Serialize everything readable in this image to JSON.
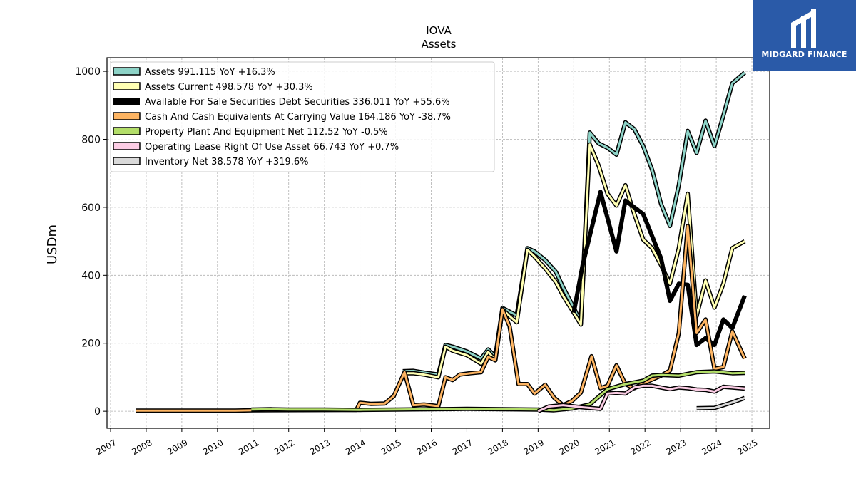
{
  "brand": {
    "name": "MIDGARD FINANCE",
    "color": "#2a5aa8"
  },
  "chart_data": {
    "type": "line",
    "title": "IOVA",
    "subtitle": "Assets",
    "ylabel": "USDm",
    "xlabel": "",
    "xlim": [
      2006.9,
      2025.5
    ],
    "ylim": [
      -50,
      1040
    ],
    "yticks": [
      0,
      200,
      400,
      600,
      800,
      1000
    ],
    "xticks": [
      "2007",
      "2008",
      "2009",
      "2010",
      "2011",
      "2012",
      "2013",
      "2014",
      "2015",
      "2016",
      "2017",
      "2018",
      "2019",
      "2020",
      "2021",
      "2022",
      "2023",
      "2024",
      "2025"
    ],
    "grid": true,
    "legend_position": "top-left",
    "series": [
      {
        "name": "Assets",
        "legend": "Assets  991.115 YoY +16.3%",
        "color": "#8dd3c7",
        "width": 3,
        "points": [
          [
            2015.2,
            118
          ],
          [
            2015.5,
            119
          ],
          [
            2015.8,
            114
          ],
          [
            2016.2,
            108
          ],
          [
            2016.4,
            195
          ],
          [
            2016.6,
            190
          ],
          [
            2017.0,
            176
          ],
          [
            2017.4,
            155
          ],
          [
            2017.6,
            182
          ],
          [
            2017.8,
            161
          ],
          [
            2018.0,
            304
          ],
          [
            2018.2,
            293
          ],
          [
            2018.4,
            282
          ],
          [
            2018.7,
            480
          ],
          [
            2018.9,
            470
          ],
          [
            2019.2,
            445
          ],
          [
            2019.5,
            410
          ],
          [
            2019.7,
            365
          ],
          [
            2020.0,
            305
          ],
          [
            2020.2,
            260
          ],
          [
            2020.45,
            820
          ],
          [
            2020.7,
            788
          ],
          [
            2020.95,
            775
          ],
          [
            2021.2,
            755
          ],
          [
            2021.45,
            850
          ],
          [
            2021.7,
            830
          ],
          [
            2021.95,
            780
          ],
          [
            2022.2,
            710
          ],
          [
            2022.45,
            610
          ],
          [
            2022.7,
            545
          ],
          [
            2022.95,
            665
          ],
          [
            2023.2,
            825
          ],
          [
            2023.45,
            760
          ],
          [
            2023.7,
            855
          ],
          [
            2023.95,
            780
          ],
          [
            2024.2,
            870
          ],
          [
            2024.45,
            965
          ],
          [
            2024.8,
            996
          ]
        ]
      },
      {
        "name": "Assets Current",
        "legend": "Assets Current  498.578 YoY +30.3%",
        "color": "#ffffb3",
        "width": 3,
        "points": [
          [
            2015.2,
            112
          ],
          [
            2015.5,
            112
          ],
          [
            2015.8,
            108
          ],
          [
            2016.2,
            100
          ],
          [
            2016.4,
            190
          ],
          [
            2016.6,
            178
          ],
          [
            2017.0,
            165
          ],
          [
            2017.4,
            140
          ],
          [
            2017.6,
            175
          ],
          [
            2017.8,
            150
          ],
          [
            2018.0,
            300
          ],
          [
            2018.2,
            280
          ],
          [
            2018.4,
            262
          ],
          [
            2018.7,
            475
          ],
          [
            2018.9,
            455
          ],
          [
            2019.2,
            420
          ],
          [
            2019.5,
            380
          ],
          [
            2019.7,
            340
          ],
          [
            2020.0,
            290
          ],
          [
            2020.2,
            255
          ],
          [
            2020.45,
            785
          ],
          [
            2020.7,
            722
          ],
          [
            2020.95,
            640
          ],
          [
            2021.2,
            605
          ],
          [
            2021.45,
            665
          ],
          [
            2021.7,
            580
          ],
          [
            2021.95,
            505
          ],
          [
            2022.2,
            480
          ],
          [
            2022.45,
            430
          ],
          [
            2022.7,
            375
          ],
          [
            2022.95,
            480
          ],
          [
            2023.2,
            640
          ],
          [
            2023.45,
            280
          ],
          [
            2023.7,
            385
          ],
          [
            2023.95,
            305
          ],
          [
            2024.2,
            375
          ],
          [
            2024.45,
            480
          ],
          [
            2024.8,
            500
          ]
        ]
      },
      {
        "name": "Available For Sale Securities Debt Securities",
        "legend": "Available For Sale Securities Debt Securities  336.011 YoY +55.6%",
        "color": "#000000",
        "width": 6,
        "points": [
          [
            2020.0,
            290
          ],
          [
            2020.25,
            430
          ],
          [
            2020.75,
            645
          ],
          [
            2021.2,
            470
          ],
          [
            2021.45,
            620
          ],
          [
            2021.95,
            580
          ],
          [
            2022.45,
            450
          ],
          [
            2022.7,
            325
          ],
          [
            2022.95,
            375
          ],
          [
            2023.2,
            372
          ],
          [
            2023.45,
            195
          ],
          [
            2023.7,
            215
          ],
          [
            2023.95,
            195
          ],
          [
            2024.2,
            270
          ],
          [
            2024.45,
            245
          ],
          [
            2024.8,
            340
          ]
        ]
      },
      {
        "name": "Cash And Cash Equivalents At Carrying Value",
        "legend": "Cash And Cash Equivalents At Carrying Value  164.186 YoY -38.7%",
        "color": "#fdb462",
        "width": 3,
        "points": [
          [
            2007.7,
            2
          ],
          [
            2010.0,
            2
          ],
          [
            2010.5,
            2
          ],
          [
            2011.0,
            3
          ],
          [
            2013.9,
            4
          ],
          [
            2014.0,
            25
          ],
          [
            2014.3,
            22
          ],
          [
            2014.7,
            23
          ],
          [
            2014.95,
            45
          ],
          [
            2015.25,
            115
          ],
          [
            2015.5,
            18
          ],
          [
            2015.8,
            20
          ],
          [
            2016.2,
            15
          ],
          [
            2016.4,
            100
          ],
          [
            2016.6,
            92
          ],
          [
            2016.8,
            108
          ],
          [
            2017.1,
            112
          ],
          [
            2017.4,
            115
          ],
          [
            2017.6,
            160
          ],
          [
            2017.8,
            150
          ],
          [
            2018.0,
            300
          ],
          [
            2018.2,
            250
          ],
          [
            2018.45,
            80
          ],
          [
            2018.7,
            80
          ],
          [
            2018.9,
            52
          ],
          [
            2019.2,
            78
          ],
          [
            2019.45,
            40
          ],
          [
            2019.7,
            18
          ],
          [
            2019.95,
            30
          ],
          [
            2020.2,
            55
          ],
          [
            2020.5,
            162
          ],
          [
            2020.75,
            68
          ],
          [
            2020.95,
            75
          ],
          [
            2021.2,
            135
          ],
          [
            2021.45,
            80
          ],
          [
            2021.7,
            68
          ],
          [
            2021.95,
            82
          ],
          [
            2022.45,
            105
          ],
          [
            2022.7,
            120
          ],
          [
            2022.95,
            230
          ],
          [
            2023.2,
            545
          ],
          [
            2023.45,
            230
          ],
          [
            2023.7,
            270
          ],
          [
            2023.95,
            125
          ],
          [
            2024.2,
            130
          ],
          [
            2024.45,
            235
          ],
          [
            2024.8,
            155
          ]
        ]
      },
      {
        "name": "Property Plant And Equipment Net",
        "legend": "Property Plant And Equipment Net  112.52 YoY -0.5%",
        "color": "#b3de69",
        "width": 3,
        "points": [
          [
            2010.95,
            5
          ],
          [
            2011.5,
            6
          ],
          [
            2012.0,
            5
          ],
          [
            2013.0,
            5
          ],
          [
            2014.0,
            4
          ],
          [
            2015.0,
            5
          ],
          [
            2016.0,
            6
          ],
          [
            2017.0,
            7
          ],
          [
            2018.0,
            6
          ],
          [
            2019.0,
            5
          ],
          [
            2019.45,
            3
          ],
          [
            2019.95,
            8
          ],
          [
            2020.45,
            20
          ],
          [
            2020.95,
            65
          ],
          [
            2021.45,
            80
          ],
          [
            2021.95,
            90
          ],
          [
            2022.2,
            105
          ],
          [
            2022.45,
            107
          ],
          [
            2022.95,
            105
          ],
          [
            2023.45,
            115
          ],
          [
            2023.95,
            117
          ],
          [
            2024.45,
            112
          ],
          [
            2024.8,
            113
          ]
        ]
      },
      {
        "name": "Operating Lease Right Of Use Asset",
        "legend": "Operating Lease Right Of Use Asset  66.743 YoY +0.7%",
        "color": "#fccde5",
        "width": 3,
        "points": [
          [
            2019.0,
            0
          ],
          [
            2019.3,
            14
          ],
          [
            2019.7,
            18
          ],
          [
            2020.2,
            12
          ],
          [
            2020.75,
            7
          ],
          [
            2020.95,
            52
          ],
          [
            2021.2,
            54
          ],
          [
            2021.45,
            52
          ],
          [
            2021.7,
            70
          ],
          [
            2021.95,
            75
          ],
          [
            2022.2,
            75
          ],
          [
            2022.45,
            70
          ],
          [
            2022.7,
            65
          ],
          [
            2022.95,
            70
          ],
          [
            2023.2,
            68
          ],
          [
            2023.45,
            64
          ],
          [
            2023.7,
            63
          ],
          [
            2023.95,
            58
          ],
          [
            2024.2,
            72
          ],
          [
            2024.45,
            70
          ],
          [
            2024.8,
            67
          ]
        ]
      },
      {
        "name": "Inventory Net",
        "legend": "Inventory Net  38.578 YoY +319.6%",
        "color": "#d9d9d9",
        "width": 3,
        "points": [
          [
            2023.45,
            9
          ],
          [
            2023.95,
            10
          ],
          [
            2024.2,
            18
          ],
          [
            2024.45,
            26
          ],
          [
            2024.8,
            39
          ]
        ]
      }
    ]
  }
}
